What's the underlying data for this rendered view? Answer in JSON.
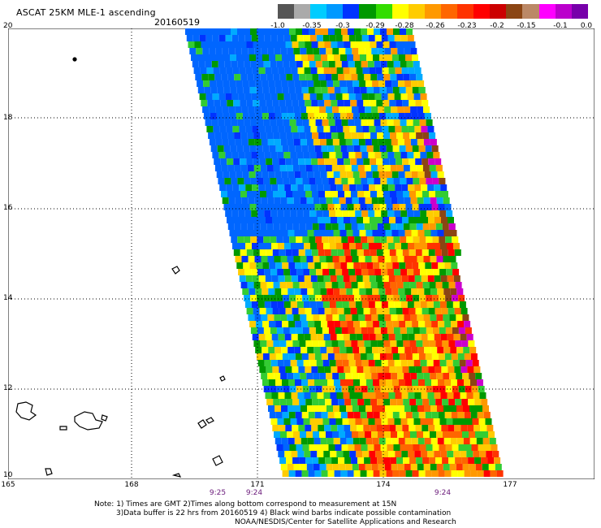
{
  "header": {
    "title": "ASCAT 25KM MLE-1 ascending",
    "date": "20160519"
  },
  "colorbar": {
    "colors": [
      "#555555",
      "#aaaaaa",
      "#00ccff",
      "#0099ff",
      "#0033ff",
      "#009900",
      "#33dd00",
      "#ffff00",
      "#ffcc00",
      "#ff9900",
      "#ff6600",
      "#ff3300",
      "#ff0000",
      "#cc0000",
      "#8b4513",
      "#bb8866",
      "#ff00ff",
      "#bb00cc",
      "#7700aa"
    ],
    "tick_labels": [
      "-1.0",
      "-0.35",
      "-0.3",
      "-0.29",
      "-0.28",
      "-0.26",
      "-0.23",
      "-0.2",
      "-0.15",
      "-0.1",
      "0.0"
    ]
  },
  "axes": {
    "lat_labels": [
      "20",
      "18",
      "16",
      "14",
      "12",
      "10"
    ],
    "lon_labels": [
      "165",
      "168",
      "171",
      "174",
      "177"
    ]
  },
  "times": [
    "9:25",
    "9:24",
    "9:24"
  ],
  "notes": {
    "line1": "Note: 1) Times are GMT 2)Times along bottom correspond to measurement at 15N",
    "line2": "3)Data buffer is 22 hrs from 20160519 4) Black wind barbs indicate possible contamination",
    "line3": "NOAA/NESDIS/Center for Satellite Applications and Research"
  }
}
